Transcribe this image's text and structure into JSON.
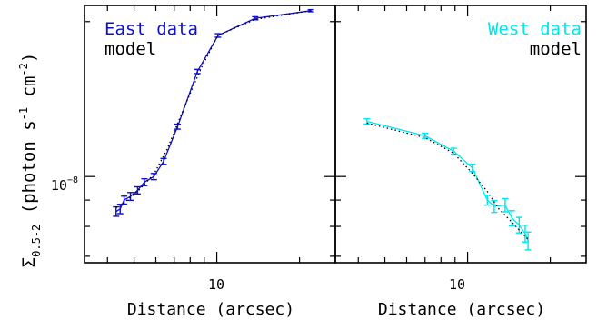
{
  "y_label": {
    "symbol": "Σ",
    "subscript": "0.5-2",
    "main": " (photon s",
    "exp1": "-1",
    "mid": " cm",
    "exp2": "-2",
    "close": ")"
  },
  "colors": {
    "east": "#1010c8",
    "west": "#00e5ee",
    "model": "#000000"
  },
  "chart_data": [
    {
      "type": "line",
      "panel": "east",
      "xlabel": "Distance (arcsec)",
      "xscale": "log",
      "yscale": "log",
      "xlim": [
        3.3,
        27
      ],
      "ylim": [
        6.8e-09,
        2.15e-08
      ],
      "x_tick_labels": [
        {
          "value": 10,
          "label": "10"
        }
      ],
      "y_tick_labels": [
        {
          "value": 1e-08,
          "base": "10",
          "exponent": "−8"
        }
      ],
      "legend": {
        "placement": "top-left",
        "entries": [
          "East data",
          "model"
        ]
      },
      "series": [
        {
          "name": "East data",
          "color": "#1010c8",
          "style": "solid",
          "x": [
            4.3,
            4.45,
            4.6,
            4.85,
            5.15,
            5.45,
            5.9,
            6.4,
            7.2,
            8.5,
            10.1,
            13.8,
            22.0
          ],
          "y": [
            8.55e-09,
            8.65e-09,
            9e-09,
            9.15e-09,
            9.4e-09,
            9.75e-09,
            1e-08,
            1.07e-08,
            1.25e-08,
            1.6e-08,
            1.88e-08,
            2.03e-08,
            2.1e-08
          ],
          "errors": [
            1.8e-10,
            1.8e-10,
            1.6e-10,
            1.6e-10,
            1.5e-10,
            1.5e-10,
            1.4e-10,
            1.4e-10,
            1.4e-10,
            1.5e-10,
            1.5e-10,
            1.4e-10,
            1e-10
          ]
        },
        {
          "name": "model",
          "color": "#000000",
          "style": "dotted",
          "x": [
            4.3,
            4.6,
            5.15,
            5.9,
            6.6,
            7.6,
            8.8,
            10.1,
            13.8,
            22.0
          ],
          "y": [
            8.7e-09,
            8.9e-09,
            9.35e-09,
            1.01e-08,
            1.13e-08,
            1.36e-08,
            1.63e-08,
            1.88e-08,
            2.02e-08,
            2.1e-08
          ]
        }
      ]
    },
    {
      "type": "line",
      "panel": "west",
      "xlabel": "Distance (arcsec)",
      "xscale": "log",
      "yscale": "log",
      "xlim": [
        3.3,
        27
      ],
      "ylim": [
        6.8e-09,
        2.15e-08
      ],
      "x_tick_labels": [
        {
          "value": 10,
          "label": "10"
        }
      ],
      "legend": {
        "placement": "top",
        "entries": [
          "West data",
          "model"
        ]
      },
      "series": [
        {
          "name": "West data",
          "color": "#00e5ee",
          "style": "solid",
          "x": [
            4.3,
            7.0,
            8.9,
            10.4,
            11.8,
            12.5,
            13.7,
            14.5,
            15.4,
            16.2,
            16.6
          ],
          "y": [
            1.28e-08,
            1.2e-08,
            1.12e-08,
            1.04e-08,
            9e-09,
            8.75e-09,
            8.8e-09,
            8.3e-09,
            8.05e-09,
            7.75e-09,
            7.5e-09
          ],
          "errors": [
            1.5e-10,
            1.4e-10,
            1.5e-10,
            1.7e-10,
            2e-10,
            2.3e-10,
            2.6e-10,
            2.8e-10,
            2.8e-10,
            2.9e-10,
            3e-10
          ]
        },
        {
          "name": "model",
          "color": "#000000",
          "style": "dotted",
          "x": [
            4.3,
            7.0,
            8.9,
            10.4,
            11.8,
            13.0,
            14.5,
            15.5,
            16.6
          ],
          "y": [
            1.27e-08,
            1.19e-08,
            1.11e-08,
            1.015e-08,
            9.35e-09,
            8.65e-09,
            8.15e-09,
            7.85e-09,
            7.55e-09
          ]
        }
      ]
    }
  ]
}
